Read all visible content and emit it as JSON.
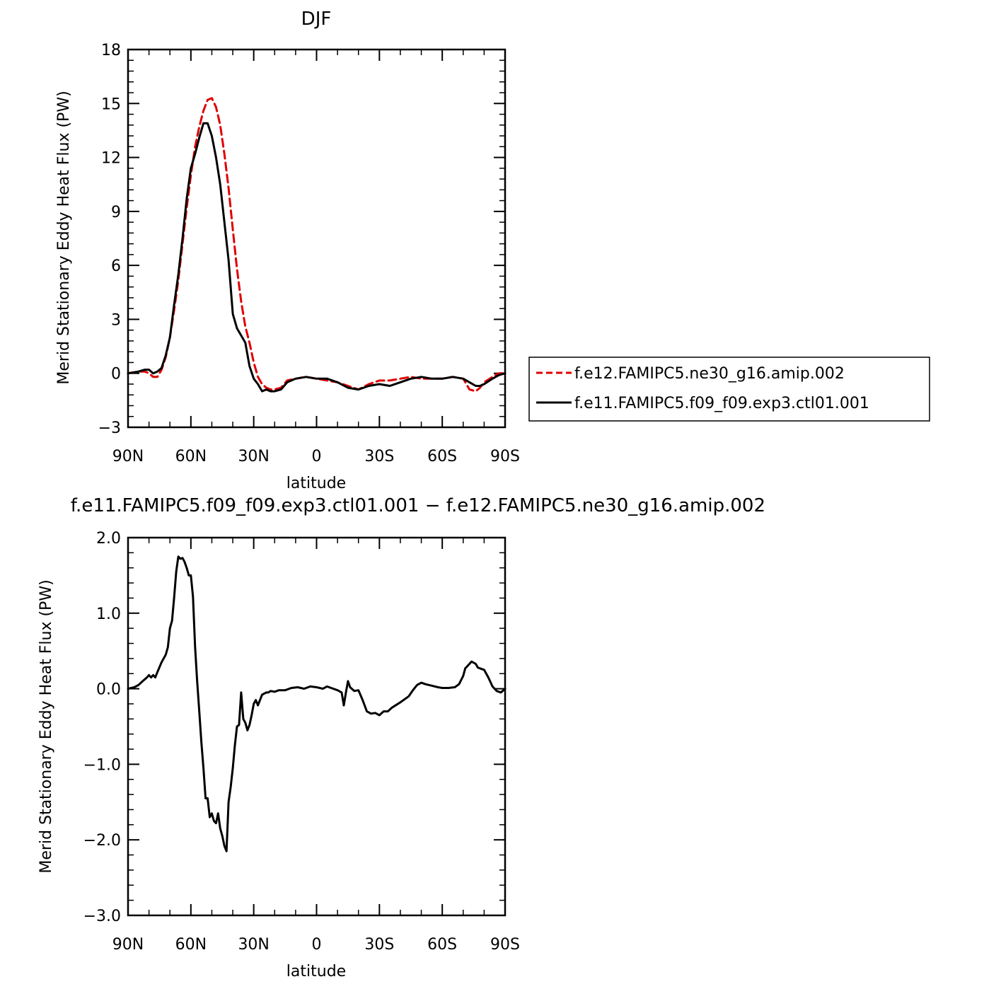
{
  "chart_data": [
    {
      "type": "line",
      "title": "DJF",
      "xlabel": "latitude",
      "ylabel": "Merid Stationary Eddy Heat Flux (PW)",
      "xlim": [
        90,
        -90
      ],
      "ylim": [
        -3,
        18
      ],
      "xticks": [
        90,
        60,
        30,
        0,
        -30,
        -60,
        -90
      ],
      "xtick_labels": [
        "90N",
        "60N",
        "30N",
        "0",
        "30S",
        "60S",
        "90S"
      ],
      "yticks": [
        -3,
        0,
        3,
        6,
        9,
        12,
        15,
        18
      ],
      "ytick_labels": [
        "−3",
        "0",
        "3",
        "6",
        "9",
        "12",
        "15",
        "18"
      ],
      "legend": "right",
      "series": [
        {
          "name": "f.e12.FAMIPC5.ne30_g16.amip.002",
          "color": "#e00000",
          "dash": "dashed",
          "x": [
            90,
            85,
            82,
            80,
            78,
            76,
            74,
            72,
            70,
            68,
            66,
            64,
            62,
            60,
            58,
            56,
            54,
            52,
            50,
            48,
            46,
            44,
            42,
            40,
            38,
            36,
            34,
            32,
            30,
            28,
            26,
            24,
            22,
            20,
            17,
            14,
            10,
            5,
            0,
            -5,
            -10,
            -15,
            -20,
            -25,
            -30,
            -35,
            -40,
            -45,
            -50,
            -55,
            -60,
            -65,
            -70,
            -73,
            -76,
            -78,
            -80,
            -84,
            -87,
            -90
          ],
          "y": [
            0,
            0.1,
            0.1,
            0,
            -0.2,
            -0.2,
            0.2,
            0.9,
            2.0,
            3.5,
            5.2,
            7.2,
            9.2,
            11.0,
            12.6,
            13.7,
            14.6,
            15.2,
            15.3,
            14.8,
            13.8,
            12.2,
            10.3,
            8.0,
            5.8,
            4.0,
            2.6,
            1.7,
            0.6,
            -0.2,
            -0.6,
            -0.8,
            -0.9,
            -0.9,
            -0.8,
            -0.4,
            -0.3,
            -0.2,
            -0.3,
            -0.4,
            -0.5,
            -0.7,
            -0.9,
            -0.6,
            -0.4,
            -0.4,
            -0.3,
            -0.2,
            -0.3,
            -0.3,
            -0.3,
            -0.2,
            -0.3,
            -0.9,
            -1.0,
            -0.8,
            -0.5,
            -0.2,
            0,
            0
          ]
        },
        {
          "name": "f.e11.FAMIPC5.f09_f09.exp3.ctl01.001",
          "color": "#000000",
          "dash": "solid",
          "x": [
            90,
            85,
            82,
            80,
            78,
            76,
            74,
            72,
            70,
            68,
            66,
            64,
            62,
            60,
            58,
            56,
            54,
            52,
            50,
            48,
            46,
            44,
            42,
            40,
            38,
            36,
            34,
            32,
            30,
            28,
            26,
            24,
            22,
            20,
            17,
            14,
            10,
            5,
            0,
            -5,
            -10,
            -15,
            -20,
            -25,
            -30,
            -35,
            -40,
            -45,
            -50,
            -55,
            -60,
            -65,
            -70,
            -73,
            -76,
            -78,
            -80,
            -84,
            -87,
            -90
          ],
          "y": [
            0,
            0.1,
            0.2,
            0.2,
            0,
            0.1,
            0.3,
            1.0,
            2.0,
            3.8,
            5.5,
            7.5,
            9.7,
            11.4,
            12.2,
            13.1,
            13.9,
            13.9,
            13.2,
            12.0,
            10.5,
            8.4,
            6.3,
            3.3,
            2.5,
            2.1,
            1.7,
            0.4,
            -0.3,
            -0.6,
            -1.0,
            -0.9,
            -1.0,
            -1.0,
            -0.9,
            -0.5,
            -0.3,
            -0.2,
            -0.3,
            -0.3,
            -0.5,
            -0.8,
            -0.9,
            -0.7,
            -0.6,
            -0.7,
            -0.5,
            -0.3,
            -0.2,
            -0.3,
            -0.3,
            -0.2,
            -0.3,
            -0.5,
            -0.7,
            -0.7,
            -0.6,
            -0.3,
            -0.1,
            0
          ]
        }
      ]
    },
    {
      "type": "line",
      "title": "f.e11.FAMIPC5.f09_f09.exp3.ctl01.001 − f.e12.FAMIPC5.ne30_g16.amip.002",
      "xlabel": "latitude",
      "ylabel": "Merid Stationary Eddy Heat Flux (PW)",
      "xlim": [
        90,
        -90
      ],
      "ylim": [
        -3,
        2
      ],
      "xticks": [
        90,
        60,
        30,
        0,
        -30,
        -60,
        -90
      ],
      "xtick_labels": [
        "90N",
        "60N",
        "30N",
        "0",
        "30S",
        "60S",
        "90S"
      ],
      "yticks": [
        -3,
        -2,
        -1,
        0,
        1,
        2
      ],
      "ytick_labels": [
        "−3.0",
        "−2.0",
        "−1.0",
        "0.0",
        "1.0",
        "2.0"
      ],
      "series": [
        {
          "color": "#000000",
          "dash": "solid",
          "x": [
            90,
            87,
            85,
            83,
            81,
            80,
            79,
            78,
            77,
            76,
            74,
            72,
            71,
            70,
            69,
            68,
            67,
            66,
            65,
            64,
            63,
            62,
            61,
            60,
            59,
            58,
            57,
            56,
            55,
            54,
            53,
            52,
            51,
            50,
            49,
            48,
            47,
            46,
            45,
            44,
            43,
            42,
            41,
            40,
            39,
            38,
            37,
            36,
            35,
            34,
            33,
            32,
            31,
            30,
            29,
            28,
            26,
            24,
            23,
            22,
            20,
            18,
            15,
            12,
            9,
            6,
            3,
            0,
            -3,
            -5,
            -8,
            -10,
            -12,
            -13,
            -14,
            -15,
            -16,
            -18,
            -20,
            -22,
            -24,
            -26,
            -28,
            -30,
            -32,
            -34,
            -36,
            -40,
            -44,
            -46,
            -48,
            -50,
            -52,
            -55,
            -58,
            -60,
            -63,
            -66,
            -68,
            -70,
            -71,
            -72,
            -74,
            -76,
            -77,
            -78,
            -80,
            -82,
            -84,
            -86,
            -88,
            -90
          ],
          "y": [
            0,
            0.02,
            0.05,
            0.1,
            0.15,
            0.18,
            0.15,
            0.18,
            0.15,
            0.22,
            0.35,
            0.45,
            0.55,
            0.8,
            0.9,
            1.2,
            1.55,
            1.75,
            1.72,
            1.73,
            1.68,
            1.6,
            1.5,
            1.5,
            1.22,
            0.55,
            0.1,
            -0.3,
            -0.7,
            -1.05,
            -1.45,
            -1.45,
            -1.7,
            -1.65,
            -1.75,
            -1.78,
            -1.65,
            -1.85,
            -1.95,
            -2.08,
            -2.15,
            -1.5,
            -1.3,
            -1.05,
            -0.75,
            -0.5,
            -0.48,
            -0.05,
            -0.4,
            -0.45,
            -0.55,
            -0.48,
            -0.35,
            -0.2,
            -0.15,
            -0.22,
            -0.08,
            -0.05,
            -0.05,
            -0.03,
            -0.04,
            -0.02,
            -0.02,
            0.01,
            0.02,
            0.0,
            0.03,
            0.02,
            0.0,
            0.03,
            0.0,
            -0.02,
            -0.05,
            -0.22,
            -0.05,
            0.1,
            0.02,
            -0.03,
            -0.02,
            -0.15,
            -0.3,
            -0.33,
            -0.32,
            -0.35,
            -0.3,
            -0.3,
            -0.25,
            -0.18,
            -0.1,
            -0.02,
            0.05,
            0.08,
            0.06,
            0.04,
            0.02,
            0.01,
            0.01,
            0.02,
            0.06,
            0.17,
            0.27,
            0.3,
            0.36,
            0.33,
            0.28,
            0.27,
            0.25,
            0.15,
            0.03,
            -0.03,
            -0.05,
            0
          ]
        }
      ]
    }
  ]
}
